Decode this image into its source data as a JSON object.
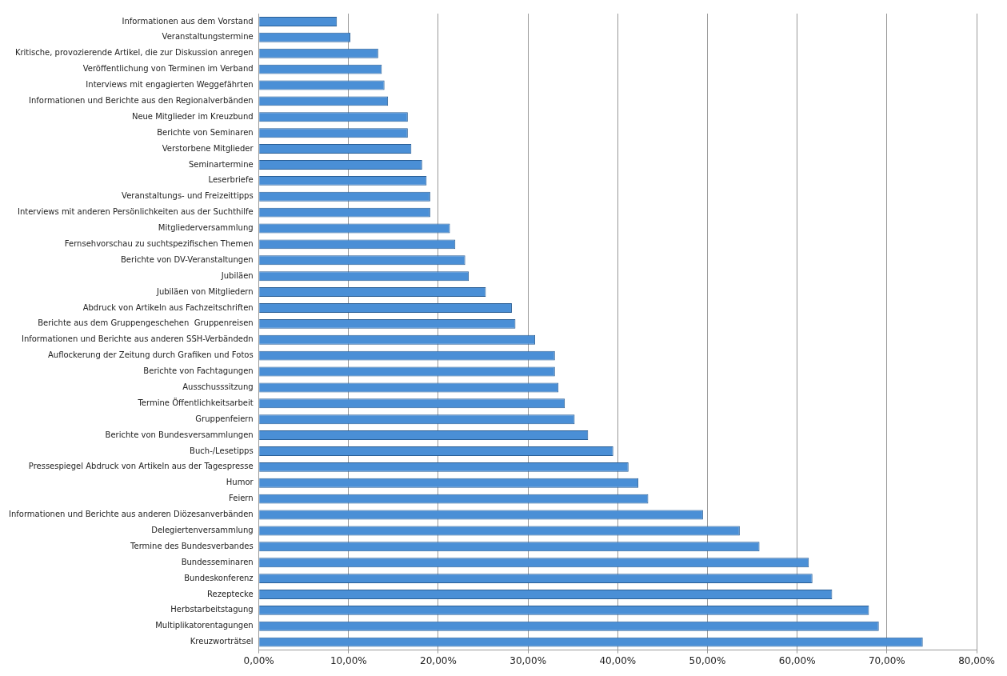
{
  "chart_data": {
    "type": "bar",
    "orientation": "horizontal",
    "categories": [
      "Informationen aus dem Vorstand",
      "Veranstaltungstermine",
      "Kritische, provozierende Artikel, die zur Diskussion anregen",
      "Veröffentlichung von Terminen im Verband",
      "Interviews mit engagierten Weggefährten",
      "Informationen und Berichte aus den Regionalverbänden",
      "Neue Mitglieder im Kreuzbund",
      "Berichte von Seminaren",
      "Verstorbene Mitglieder",
      "Seminartermine",
      "Leserbriefe",
      "Veranstaltungs- und Freizeittipps",
      "Interviews mit anderen Persönlichkeiten aus der Suchthilfe",
      "Mitgliederversammlung",
      "Fernsehvorschau zu suchtspezifischen Themen",
      "Berichte von DV-Veranstaltungen",
      "Jubiläen",
      "Jubiläen von Mitgliedern",
      "Abdruck von Artikeln aus Fachzeitschriften",
      "Berichte aus dem Gruppengeschehen  Gruppenreisen",
      "Informationen und Berichte aus anderen SSH-Verbändedn",
      "Auflockerung der Zeitung durch Grafiken und Fotos",
      "Berichte von Fachtagungen",
      "Ausschusssitzung",
      "Termine Öffentlichkeitsarbeit",
      "Gruppenfeiern",
      "Berichte von Bundesversammlungen",
      "Buch-/Lesetipps",
      "Pressespiegel Abdruck von Artikeln aus der Tagespresse",
      "Humor",
      "Feiern",
      "Informationen und Berichte aus anderen Diözesanverbänden",
      "Delegiertenversammlung",
      "Termine des Bundesverbandes",
      "Bundesseminaren",
      "Bundeskonferenz",
      "Rezeptecke",
      "Herbstarbeitstagung",
      "Multiplikatorentagungen",
      "Kreuzworträtsel"
    ],
    "values": [
      8.7,
      10.2,
      13.3,
      13.7,
      14.0,
      14.4,
      16.6,
      16.6,
      17.0,
      18.2,
      18.7,
      19.1,
      19.1,
      21.3,
      21.9,
      23.0,
      23.4,
      25.3,
      28.2,
      28.6,
      30.8,
      33.0,
      33.0,
      33.4,
      34.1,
      35.2,
      36.7,
      39.5,
      41.2,
      42.3,
      43.4,
      49.5,
      53.6,
      55.8,
      61.3,
      61.7,
      63.9,
      68.0,
      69.1,
      74.0
    ],
    "color": "#4a8fd6",
    "xlim": [
      0,
      80
    ],
    "xticks": [
      {
        "value": 0,
        "label": "0,00%"
      },
      {
        "value": 10,
        "label": "10,00%"
      },
      {
        "value": 20,
        "label": "20,00%"
      },
      {
        "value": 30,
        "label": "30,00%"
      },
      {
        "value": 40,
        "label": "40,00%"
      },
      {
        "value": 50,
        "label": "50,00%"
      },
      {
        "value": 60,
        "label": "60,00%"
      },
      {
        "value": 70,
        "label": "70,00%"
      },
      {
        "value": 80,
        "label": "80,00%"
      }
    ],
    "grid": "x"
  }
}
